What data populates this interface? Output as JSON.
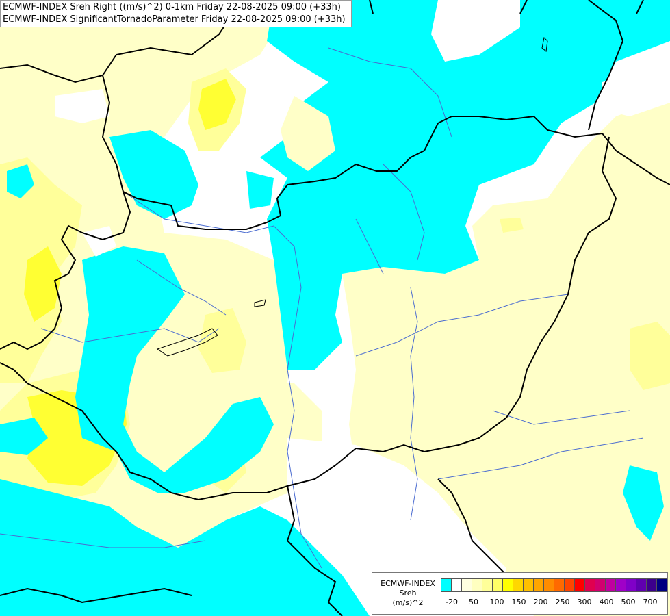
{
  "header": {
    "line1": "ECMWF-INDEX Sreh Right ((m/s)^2) 0-1km Friday 22-08-2025 09:00 (+33h)",
    "line2": "ECMWF-INDEX SignificantTornadoParameter Friday 22-08-2025 09:00 (+33h)"
  },
  "legend": {
    "title_lines": [
      "ECMWF-INDEX",
      "Sreh",
      "(m/s)^2"
    ],
    "colors": [
      "#00ffff",
      "#ffffff",
      "#ffffe0",
      "#ffffc0",
      "#ffff99",
      "#ffff66",
      "#ffff00",
      "#ffd700",
      "#ffc000",
      "#ffa500",
      "#ff8c00",
      "#ff6a00",
      "#ff4500",
      "#ff0000",
      "#e0004f",
      "#d1006f",
      "#c000a0",
      "#a000c8",
      "#8000c8",
      "#6000b0",
      "#3c008c",
      "#000080"
    ],
    "tick_labels": [
      "-20",
      "50",
      "100",
      "150",
      "200",
      "250",
      "300",
      "400",
      "500",
      "700"
    ]
  },
  "map": {
    "colors": {
      "cyan": "#00ffff",
      "pale_yellow": "#ffffc8",
      "light_yellow": "#ffff9a",
      "yellow": "#ffff33",
      "white": "#ffffff",
      "border": "#000000",
      "river": "#4a6bd0"
    }
  }
}
